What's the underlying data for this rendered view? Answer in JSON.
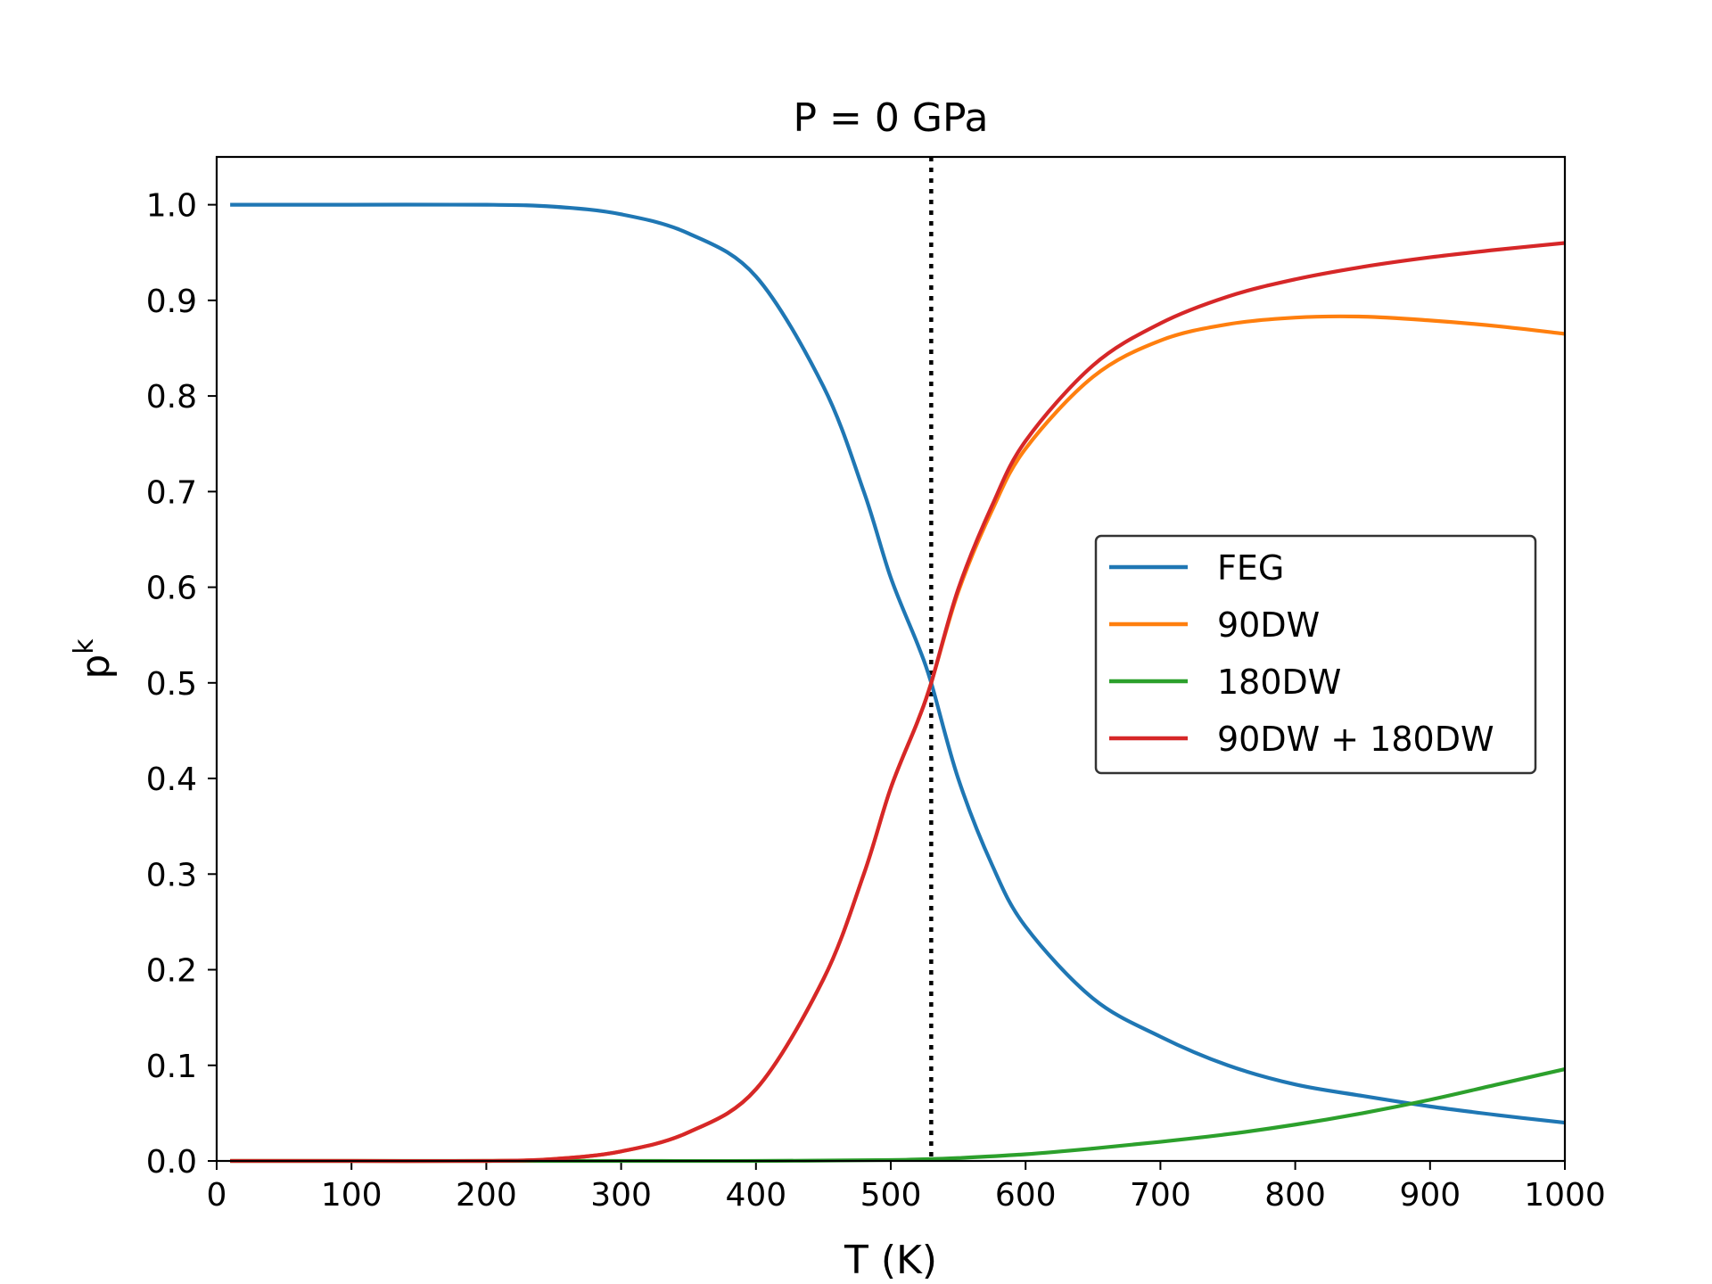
{
  "chart_data": {
    "type": "line",
    "title": "P = 0 GPa",
    "xlabel": "T (K)",
    "ylabel_base": "p",
    "ylabel_sup": "k",
    "xlim": [
      0,
      1000
    ],
    "ylim": [
      0.0,
      1.05
    ],
    "xticks": [
      0,
      100,
      200,
      300,
      400,
      500,
      600,
      700,
      800,
      900,
      1000
    ],
    "yticks": [
      0.0,
      0.1,
      0.2,
      0.3,
      0.4,
      0.5,
      0.6,
      0.7,
      0.8,
      0.9,
      1.0
    ],
    "xtick_labels": [
      "0",
      "100",
      "200",
      "300",
      "400",
      "500",
      "600",
      "700",
      "800",
      "900",
      "1000"
    ],
    "ytick_labels": [
      "0.0",
      "0.1",
      "0.2",
      "0.3",
      "0.4",
      "0.5",
      "0.6",
      "0.7",
      "0.8",
      "0.9",
      "1.0"
    ],
    "grid": false,
    "legend_position": "center-right",
    "vline": {
      "x": 530,
      "style": "dotted",
      "color": "#000000"
    },
    "series": [
      {
        "name": "FEG",
        "color": "#1f77b4",
        "x": [
          10,
          100,
          200,
          250,
          300,
          350,
          400,
          450,
          480,
          500,
          520,
          530,
          550,
          575,
          600,
          650,
          700,
          750,
          800,
          850,
          900,
          950,
          1000
        ],
        "y": [
          1.0,
          1.0,
          1.0,
          0.998,
          0.99,
          0.97,
          0.925,
          0.81,
          0.7,
          0.61,
          0.54,
          0.5,
          0.4,
          0.31,
          0.245,
          0.17,
          0.13,
          0.1,
          0.08,
          0.068,
          0.057,
          0.048,
          0.04
        ]
      },
      {
        "name": "90DW",
        "color": "#ff7f0e",
        "x": [
          10,
          100,
          200,
          250,
          300,
          350,
          400,
          450,
          480,
          500,
          520,
          530,
          550,
          575,
          600,
          650,
          700,
          750,
          800,
          850,
          900,
          950,
          1000
        ],
        "y": [
          0.0,
          0.0,
          0.0,
          0.002,
          0.01,
          0.03,
          0.075,
          0.19,
          0.3,
          0.39,
          0.46,
          0.5,
          0.595,
          0.68,
          0.745,
          0.82,
          0.858,
          0.875,
          0.882,
          0.883,
          0.879,
          0.873,
          0.865
        ]
      },
      {
        "name": "180DW",
        "color": "#2ca02c",
        "x": [
          10,
          100,
          200,
          300,
          400,
          500,
          530,
          550,
          600,
          650,
          700,
          750,
          800,
          850,
          900,
          950,
          1000
        ],
        "y": [
          0.0,
          0.0,
          0.0,
          0.0,
          0.0,
          0.001,
          0.002,
          0.003,
          0.007,
          0.013,
          0.02,
          0.028,
          0.038,
          0.05,
          0.064,
          0.08,
          0.096
        ]
      },
      {
        "name": "90DW + 180DW",
        "color": "#d62728",
        "x": [
          10,
          100,
          200,
          250,
          300,
          350,
          400,
          450,
          480,
          500,
          520,
          530,
          550,
          575,
          600,
          650,
          700,
          750,
          800,
          850,
          900,
          950,
          1000
        ],
        "y": [
          0.0,
          0.0,
          0.0,
          0.002,
          0.01,
          0.03,
          0.075,
          0.19,
          0.3,
          0.39,
          0.46,
          0.5,
          0.598,
          0.685,
          0.753,
          0.832,
          0.876,
          0.904,
          0.922,
          0.935,
          0.945,
          0.953,
          0.96
        ]
      }
    ]
  }
}
